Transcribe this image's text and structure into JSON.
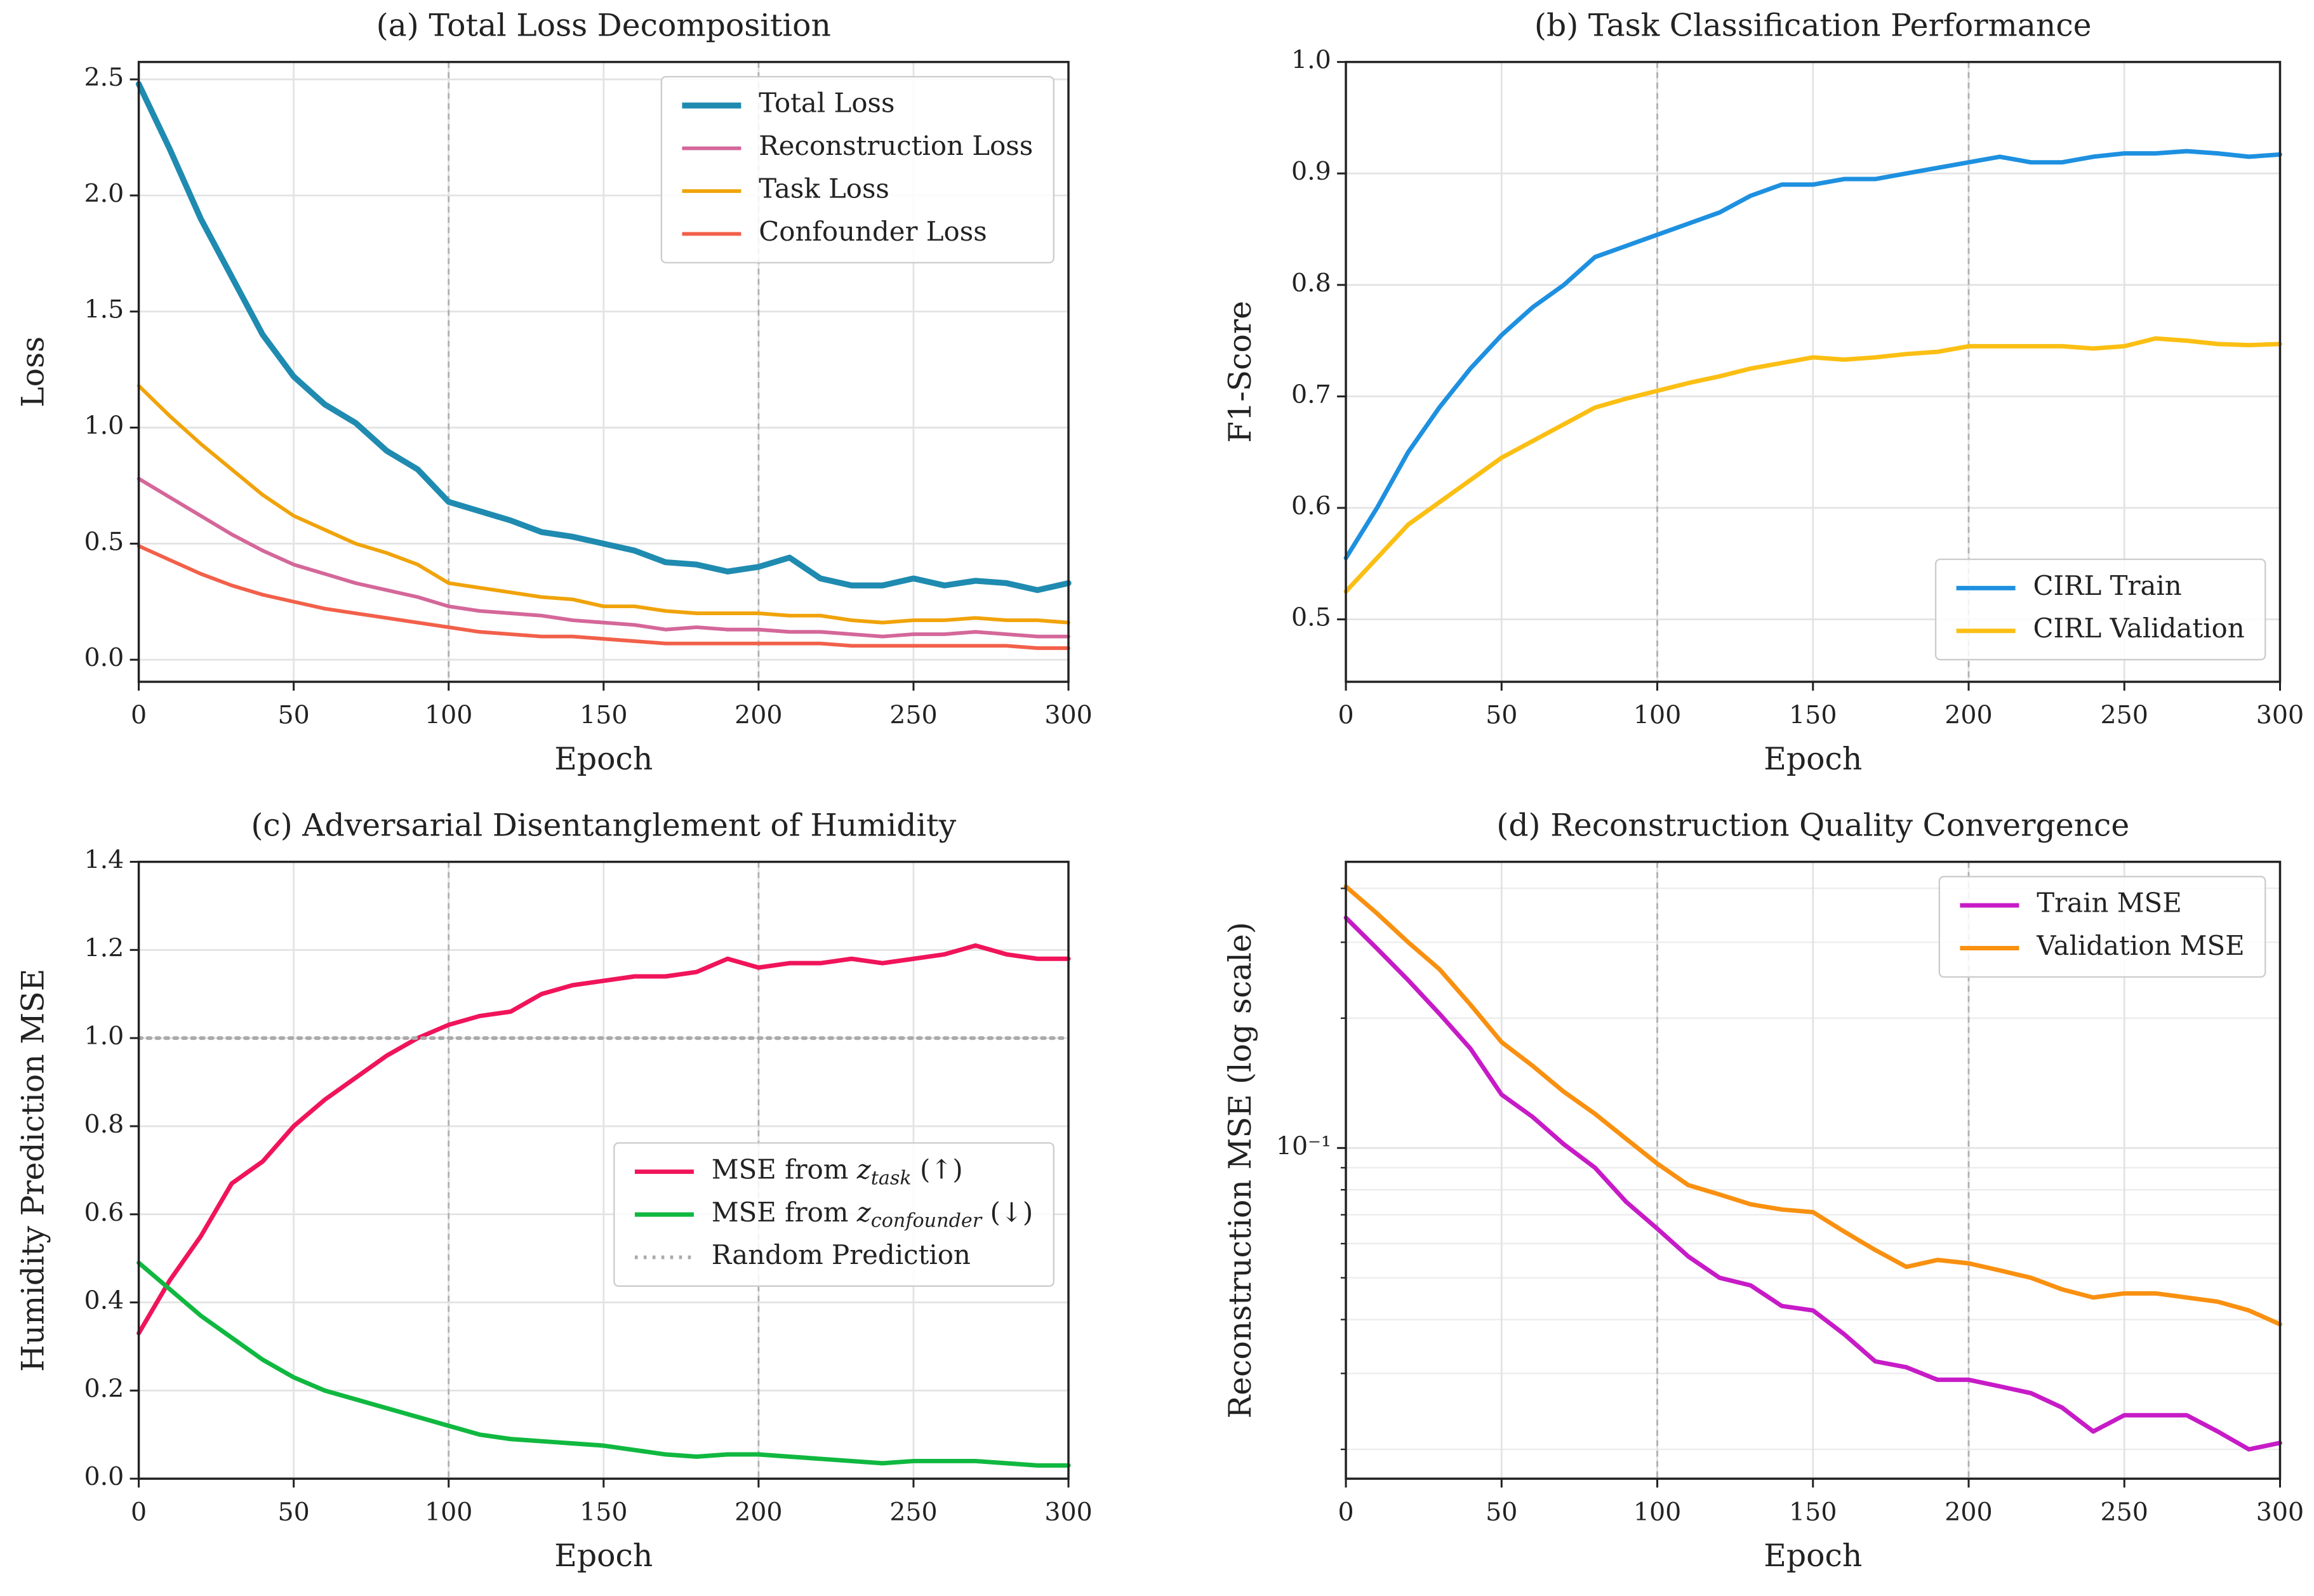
{
  "chart_data": [
    {
      "type": "line",
      "title": "(a) Total Loss Decomposition",
      "xlabel": "Epoch",
      "ylabel": "Loss",
      "x": [
        0,
        10,
        20,
        30,
        40,
        50,
        60,
        70,
        80,
        90,
        100,
        110,
        120,
        130,
        140,
        150,
        160,
        170,
        180,
        190,
        200,
        210,
        220,
        230,
        240,
        250,
        260,
        270,
        280,
        290,
        300
      ],
      "series": [
        {
          "name": "Total Loss",
          "color": "#1f8bb0",
          "width": 4,
          "values": [
            2.48,
            2.2,
            1.9,
            1.65,
            1.4,
            1.22,
            1.1,
            1.02,
            0.9,
            0.82,
            0.68,
            0.64,
            0.6,
            0.55,
            0.53,
            0.5,
            0.47,
            0.42,
            0.41,
            0.38,
            0.4,
            0.44,
            0.35,
            0.32,
            0.32,
            0.35,
            0.32,
            0.34,
            0.33,
            0.3,
            0.33
          ]
        },
        {
          "name": "Reconstruction Loss",
          "color": "#d4679a",
          "width": 2.5,
          "values": [
            0.78,
            0.7,
            0.62,
            0.54,
            0.47,
            0.41,
            0.37,
            0.33,
            0.3,
            0.27,
            0.23,
            0.21,
            0.2,
            0.19,
            0.17,
            0.16,
            0.15,
            0.13,
            0.14,
            0.13,
            0.13,
            0.12,
            0.12,
            0.11,
            0.1,
            0.11,
            0.11,
            0.12,
            0.11,
            0.1,
            0.1
          ]
        },
        {
          "name": "Task Loss",
          "color": "#f0a30a",
          "width": 2.5,
          "values": [
            1.18,
            1.05,
            0.93,
            0.82,
            0.71,
            0.62,
            0.56,
            0.5,
            0.46,
            0.41,
            0.33,
            0.31,
            0.29,
            0.27,
            0.26,
            0.23,
            0.23,
            0.21,
            0.2,
            0.2,
            0.2,
            0.19,
            0.19,
            0.17,
            0.16,
            0.17,
            0.17,
            0.18,
            0.17,
            0.17,
            0.16
          ]
        },
        {
          "name": "Confounder Loss",
          "color": "#f2604a",
          "width": 2.5,
          "values": [
            0.49,
            0.43,
            0.37,
            0.32,
            0.28,
            0.25,
            0.22,
            0.2,
            0.18,
            0.16,
            0.14,
            0.12,
            0.11,
            0.1,
            0.1,
            0.09,
            0.08,
            0.07,
            0.07,
            0.07,
            0.07,
            0.07,
            0.07,
            0.06,
            0.06,
            0.06,
            0.06,
            0.06,
            0.06,
            0.05,
            0.05
          ]
        }
      ],
      "xlim": [
        0,
        300
      ],
      "xticks": [
        0,
        50,
        100,
        150,
        200,
        250,
        300
      ],
      "ylim": [
        -0.095,
        2.575
      ],
      "yticks": [
        {
          "value": 0,
          "label": "0.0"
        },
        0.5,
        {
          "value": 1,
          "label": "1.0"
        },
        1.5,
        {
          "value": 2,
          "label": "2.0"
        },
        2.5
      ],
      "grid": true,
      "vlines": [
        100,
        200
      ],
      "legend": "upper right"
    },
    {
      "type": "line",
      "title": "(b) Task Classification Performance",
      "xlabel": "Epoch",
      "ylabel": "F1-Score",
      "x": [
        0,
        10,
        20,
        30,
        40,
        50,
        60,
        70,
        80,
        90,
        100,
        110,
        120,
        130,
        140,
        150,
        160,
        170,
        180,
        190,
        200,
        210,
        220,
        230,
        240,
        250,
        260,
        270,
        280,
        290,
        300
      ],
      "series": [
        {
          "name": "CIRL Train",
          "color": "#1e90e0",
          "width": 3,
          "values": [
            0.555,
            0.6,
            0.65,
            0.69,
            0.725,
            0.755,
            0.78,
            0.8,
            0.825,
            0.835,
            0.845,
            0.855,
            0.865,
            0.88,
            0.89,
            0.89,
            0.895,
            0.895,
            0.9,
            0.905,
            0.91,
            0.915,
            0.91,
            0.91,
            0.915,
            0.918,
            0.918,
            0.92,
            0.918,
            0.915,
            0.917
          ]
        },
        {
          "name": "CIRL Validation",
          "color": "#fbbf14",
          "width": 3,
          "values": [
            0.525,
            0.555,
            0.585,
            0.605,
            0.625,
            0.645,
            0.66,
            0.675,
            0.69,
            0.698,
            0.705,
            0.712,
            0.718,
            0.725,
            0.73,
            0.735,
            0.733,
            0.735,
            0.738,
            0.74,
            0.745,
            0.745,
            0.745,
            0.745,
            0.743,
            0.745,
            0.752,
            0.75,
            0.747,
            0.746,
            0.747
          ]
        }
      ],
      "xlim": [
        0,
        300
      ],
      "xticks": [
        0,
        50,
        100,
        150,
        200,
        250,
        300
      ],
      "ylim": [
        0.444,
        1.0
      ],
      "yticks": [
        0.5,
        0.6,
        0.7,
        0.8,
        0.9,
        {
          "value": 1,
          "label": "1.0"
        }
      ],
      "grid": true,
      "vlines": [
        100,
        200
      ],
      "legend": "lower right"
    },
    {
      "type": "line",
      "title": "(c) Adversarial Disentanglement of Humidity",
      "xlabel": "Epoch",
      "ylabel": "Humidity Prediction MSE",
      "x": [
        0,
        10,
        20,
        30,
        40,
        50,
        60,
        70,
        80,
        90,
        100,
        110,
        120,
        130,
        140,
        150,
        160,
        170,
        180,
        190,
        200,
        210,
        220,
        230,
        240,
        250,
        260,
        270,
        280,
        290,
        300
      ],
      "series": [
        {
          "name": "MSE from z_task (↑)",
          "color": "#f0145a",
          "width": 3,
          "values": [
            0.33,
            0.45,
            0.55,
            0.67,
            0.72,
            0.8,
            0.86,
            0.91,
            0.96,
            1.0,
            1.03,
            1.05,
            1.06,
            1.1,
            1.12,
            1.13,
            1.14,
            1.14,
            1.15,
            1.18,
            1.16,
            1.17,
            1.17,
            1.18,
            1.17,
            1.18,
            1.19,
            1.21,
            1.19,
            1.18,
            1.18
          ]
        },
        {
          "name": "MSE from z_confounder (↓)",
          "color": "#10b840",
          "width": 3,
          "values": [
            0.49,
            0.43,
            0.37,
            0.32,
            0.27,
            0.23,
            0.2,
            0.18,
            0.16,
            0.14,
            0.12,
            0.1,
            0.09,
            0.085,
            0.08,
            0.075,
            0.065,
            0.055,
            0.05,
            0.055,
            0.055,
            0.05,
            0.045,
            0.04,
            0.035,
            0.04,
            0.04,
            0.04,
            0.035,
            0.03,
            0.03
          ]
        },
        {
          "name": "Random Prediction",
          "color": "#aaaaaa",
          "width": 2.5,
          "style": "dotted",
          "values": [
            1,
            1,
            1,
            1,
            1,
            1,
            1,
            1,
            1,
            1,
            1,
            1,
            1,
            1,
            1,
            1,
            1,
            1,
            1,
            1,
            1,
            1,
            1,
            1,
            1,
            1,
            1,
            1,
            1,
            1,
            1
          ]
        }
      ],
      "xlim": [
        0,
        300
      ],
      "xticks": [
        0,
        50,
        100,
        150,
        200,
        250,
        300
      ],
      "ylim": [
        0,
        1.4
      ],
      "yticks": [
        {
          "value": 0,
          "label": "0.0"
        },
        0.2,
        0.4,
        0.6,
        0.8,
        {
          "value": 1,
          "label": "1.0"
        },
        1.2,
        1.4
      ],
      "grid": true,
      "vlines": [
        100,
        200
      ],
      "legend": "center right"
    },
    {
      "type": "line",
      "title": "(d) Reconstruction Quality Convergence",
      "xlabel": "Epoch",
      "ylabel": "Reconstruction MSE (log scale)",
      "x": [
        0,
        10,
        20,
        30,
        40,
        50,
        60,
        70,
        80,
        90,
        100,
        110,
        120,
        130,
        140,
        150,
        160,
        170,
        180,
        190,
        200,
        210,
        220,
        230,
        240,
        250,
        260,
        270,
        280,
        290,
        300
      ],
      "series": [
        {
          "name": "Train MSE",
          "color": "#c71bc7",
          "width": 3,
          "values": [
            0.342,
            0.29,
            0.245,
            0.205,
            0.17,
            0.133,
            0.118,
            0.102,
            0.09,
            0.075,
            0.065,
            0.056,
            0.05,
            0.048,
            0.043,
            0.042,
            0.037,
            0.032,
            0.031,
            0.029,
            0.029,
            0.028,
            0.027,
            0.025,
            0.022,
            0.024,
            0.024,
            0.024,
            0.022,
            0.02,
            0.0207
          ]
        },
        {
          "name": "Validation MSE",
          "color": "#f99010",
          "width": 3,
          "values": [
            0.404,
            0.35,
            0.3,
            0.26,
            0.215,
            0.176,
            0.155,
            0.135,
            0.12,
            0.105,
            0.092,
            0.082,
            0.078,
            0.074,
            0.072,
            0.071,
            0.064,
            0.058,
            0.053,
            0.055,
            0.054,
            0.052,
            0.05,
            0.047,
            0.045,
            0.046,
            0.046,
            0.045,
            0.044,
            0.042,
            0.039
          ]
        }
      ],
      "xlim": [
        0,
        300
      ],
      "xticks": [
        0,
        50,
        100,
        150,
        200,
        250,
        300
      ],
      "ylim": [
        0.0171,
        0.461
      ],
      "yticks": [
        {
          "value": 0.1,
          "label": "10⁻¹"
        }
      ],
      "yminorticks": [
        0.02,
        0.03,
        0.04,
        0.05,
        0.06,
        0.07,
        0.08,
        0.09,
        0.2,
        0.3,
        0.4
      ],
      "log": true,
      "grid": true,
      "vlines": [
        100,
        200
      ],
      "legend": "upper right"
    }
  ]
}
